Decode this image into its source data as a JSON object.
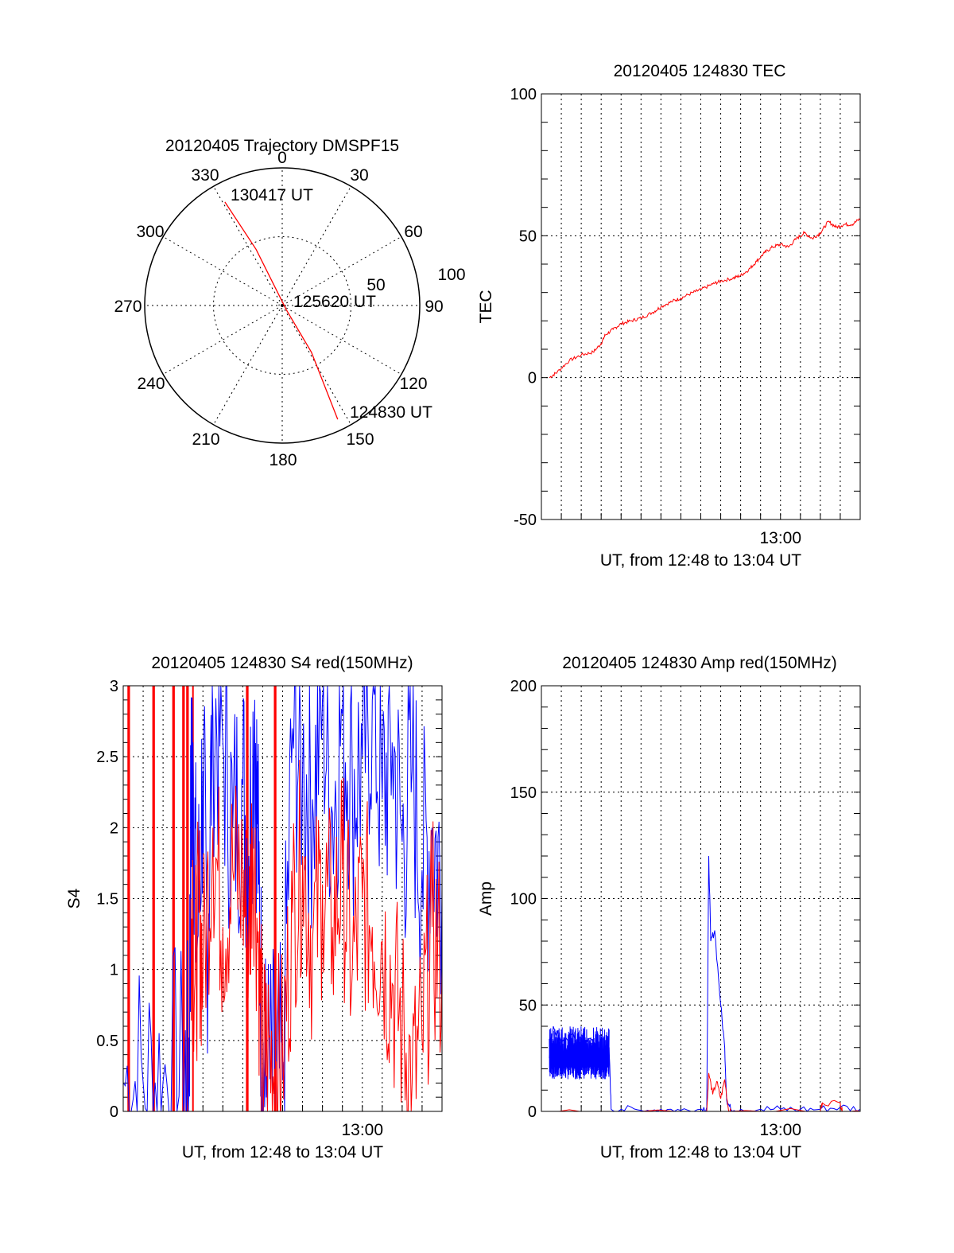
{
  "chart_data": [
    {
      "type": "polar",
      "title": "20120405 Trajectory DMSPF15",
      "angle_labels": [
        "0",
        "30",
        "60",
        "90",
        "120",
        "150",
        "180",
        "210",
        "240",
        "270",
        "300",
        "330"
      ],
      "radial_labels": [
        "50",
        "100"
      ],
      "rlim": [
        0,
        100
      ],
      "grid": true,
      "series": [
        {
          "color": "#ff0000",
          "points": [
            {
              "az": 154,
              "r": 92
            },
            {
              "az": 148,
              "r": 40
            },
            {
              "az": 135,
              "r": 4
            },
            {
              "az": 335,
              "r": 45
            },
            {
              "az": 331,
              "r": 86
            }
          ]
        }
      ],
      "annotations": [
        {
          "text": "130417 UT",
          "az": 345,
          "r": 78
        },
        {
          "text": "125620 UT",
          "az": 93,
          "r": 19
        },
        {
          "text": "124830 UT",
          "az": 150,
          "r": 100
        }
      ]
    },
    {
      "type": "line",
      "title": "20120405 124830 TEC",
      "xlabel": "UT, from 12:48 to 13:04 UT",
      "ylabel": "TEC",
      "xlim": [
        0,
        16
      ],
      "ylim": [
        -50,
        100
      ],
      "yticks": [
        -50,
        0,
        50,
        100
      ],
      "xtick_labels": [
        {
          "t": 12,
          "label": "13:00"
        }
      ],
      "grid": true,
      "series": [
        {
          "color": "#ff0000",
          "x": [
            0.4,
            0.8,
            1.4,
            2.0,
            2.6,
            3.0,
            3.2,
            3.6,
            4.0,
            4.5,
            5.0,
            5.6,
            6.0,
            6.6,
            7.0,
            7.6,
            8.0,
            8.6,
            9.0,
            9.6,
            10.0,
            10.4,
            10.8,
            11.2,
            11.6,
            12.0,
            12.4,
            12.8,
            13.2,
            13.6,
            14.0,
            14.4,
            14.8,
            15.2,
            15.6,
            16.0
          ],
          "y": [
            0,
            2,
            6,
            8,
            9,
            12,
            15,
            17,
            19,
            20,
            21,
            23,
            25,
            27,
            28,
            30,
            31,
            33,
            34,
            35,
            36,
            38,
            41,
            44,
            46,
            47,
            46,
            49,
            51,
            49,
            51,
            55,
            53,
            54,
            54,
            56
          ]
        }
      ]
    },
    {
      "type": "line",
      "title": "20120405 124830 S4 red(150MHz)",
      "xlabel": "UT, from 12:48 to 13:04 UT",
      "ylabel": "S4",
      "xlim": [
        0,
        16
      ],
      "ylim": [
        0,
        3
      ],
      "yticks": [
        0,
        0.5,
        1,
        1.5,
        2,
        2.5,
        3
      ],
      "ytick_labels": [
        "0",
        "0.5",
        "1",
        "1.5",
        "2",
        "2.5",
        "3"
      ],
      "xtick_labels": [
        {
          "t": 12,
          "label": "13:00"
        }
      ],
      "grid": true,
      "red_spikes_x": [
        0.25,
        0.3,
        1.5,
        1.55,
        2.5,
        2.55,
        3.0,
        3.05,
        3.2,
        3.25,
        3.5,
        6.2,
        6.25,
        7.6,
        7.65
      ],
      "series": [
        {
          "color": "#0000ff",
          "x": [
            0.0,
            1.0,
            2.0,
            3.0,
            3.3,
            3.4,
            3.5,
            3.7,
            4.0,
            4.2,
            4.5,
            5.0,
            5.5,
            6.0,
            6.3,
            6.6,
            6.8,
            7.0,
            7.2,
            7.6,
            8.0,
            8.5,
            9.0,
            9.5,
            10.0,
            10.5,
            11.0,
            11.5,
            12.0,
            12.5,
            13.0,
            13.5,
            14.0,
            14.5,
            15.0,
            15.5,
            16.0
          ],
          "y": [
            0.2,
            0.2,
            0.21,
            0.22,
            0.24,
            2.1,
            2.6,
            1.1,
            2.4,
            1.2,
            2.8,
            2.6,
            2.0,
            2.3,
            1.8,
            2.9,
            1.6,
            0.3,
            0.25,
            0.2,
            0.22,
            2.7,
            2.4,
            2.2,
            2.9,
            2.1,
            2.8,
            2.3,
            2.5,
            2.9,
            2.2,
            2.6,
            1.9,
            2.4,
            1.7,
            2.0,
            1.6
          ]
        },
        {
          "color": "#ff0000",
          "x": [
            3.4,
            3.6,
            3.8,
            4.0,
            4.5,
            5.0,
            5.5,
            6.0,
            6.3,
            6.5,
            6.8,
            7.0,
            7.2,
            7.6,
            8.0,
            8.5,
            9.0,
            9.5,
            10.0,
            10.5,
            11.0,
            11.5,
            12.0,
            12.5,
            13.0,
            13.5,
            14.0,
            14.5,
            15.0,
            15.5,
            16.0
          ],
          "y": [
            1.5,
            0.9,
            1.4,
            1.0,
            2.0,
            1.3,
            1.7,
            1.6,
            1.2,
            2.0,
            1.1,
            0.35,
            0.45,
            0.3,
            0.4,
            1.4,
            1.8,
            1.2,
            1.6,
            1.3,
            1.7,
            1.0,
            1.5,
            1.3,
            1.2,
            0.9,
            0.6,
            0.2,
            0.5,
            1.3,
            1.0
          ]
        }
      ]
    },
    {
      "type": "line",
      "title": "20120405 124830 Amp red(150MHz)",
      "xlabel": "UT, from 12:48 to 13:04 UT",
      "ylabel": "Amp",
      "xlim": [
        0,
        16
      ],
      "ylim": [
        0,
        200
      ],
      "yticks": [
        0,
        50,
        100,
        150,
        200
      ],
      "xtick_labels": [
        {
          "t": 12,
          "label": "13:00"
        }
      ],
      "grid": true,
      "series": [
        {
          "color": "#0000ff",
          "x": [
            0.4,
            0.6,
            1.0,
            1.5,
            2.0,
            2.5,
            3.0,
            3.4,
            3.5,
            4.0,
            5.0,
            6.0,
            7.0,
            8.0,
            8.3,
            8.4,
            8.5,
            8.7,
            9.0,
            9.2,
            9.3,
            9.5,
            10.0,
            11.0,
            12.0,
            13.0,
            14.0,
            15.0,
            16.0
          ],
          "y": [
            25,
            40,
            32,
            36,
            30,
            34,
            28,
            30,
            1,
            1,
            0.5,
            1,
            0.5,
            1,
            2,
            120,
            80,
            85,
            50,
            30,
            5,
            1,
            1,
            1,
            1,
            1,
            1,
            2,
            1
          ],
          "band": [
            [
              0.4,
              3.4,
              15,
              40
            ]
          ]
        },
        {
          "color": "#ff0000",
          "x": [
            0.4,
            3.4,
            8.3,
            8.4,
            8.6,
            8.8,
            9.0,
            9.2,
            9.4,
            9.5,
            14.0,
            14.1,
            15.0,
            15.1,
            16.0
          ],
          "y": [
            0,
            0,
            0,
            18,
            8,
            14,
            6,
            15,
            0,
            0,
            0,
            4,
            4,
            0,
            0
          ]
        }
      ]
    }
  ]
}
